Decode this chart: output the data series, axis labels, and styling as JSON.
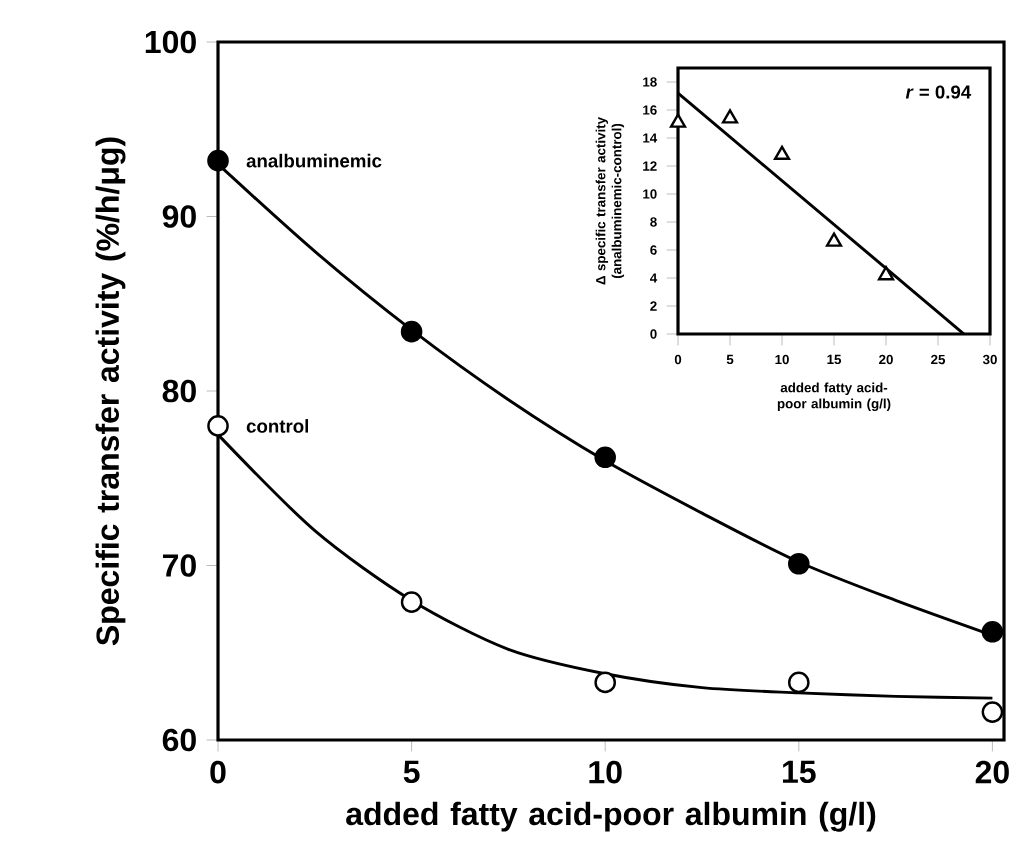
{
  "chart_data": [
    {
      "type": "scatter",
      "xlabel": "added fatty acid-poor albumin (g/l)",
      "ylabel": "Specific transfer activity (%/h/μg)",
      "xlim": [
        0,
        20.3
      ],
      "ylim": [
        60,
        100
      ],
      "xticks": [
        0,
        5,
        10,
        15,
        20
      ],
      "yticks": [
        60,
        70,
        80,
        90,
        100
      ],
      "marker": "circle",
      "grid": false,
      "legend": false,
      "series": [
        {
          "name": "analbuminemic",
          "color": "#000000",
          "x": [
            0,
            5,
            10,
            15,
            20
          ],
          "values": [
            93.2,
            83.4,
            76.2,
            70.1,
            66.2
          ]
        },
        {
          "name": "control",
          "color": "#ffffff",
          "x": [
            0,
            5,
            10,
            15,
            20
          ],
          "values": [
            78.0,
            67.9,
            63.3,
            63.3,
            61.6
          ]
        },
        {
          "type": "line",
          "marker": "none",
          "color": "#000000",
          "x": [
            0,
            2.5,
            5,
            7.5,
            10,
            12.5,
            15,
            17.5,
            20
          ],
          "values": [
            93,
            88,
            83.5,
            79.5,
            76,
            73,
            70.2,
            68,
            66
          ]
        },
        {
          "type": "line",
          "marker": "none",
          "color": "#000000",
          "x": [
            0,
            2.5,
            5,
            7.5,
            10,
            12.5,
            15,
            17.5,
            20
          ],
          "values": [
            77.5,
            72,
            68,
            65.2,
            63.8,
            63,
            62.7,
            62.5,
            62.4
          ]
        }
      ]
    },
    {
      "type": "scatter",
      "xlabel": "added fatty acid-poor albumin (g/l)",
      "ylabel": "Δ specific transfer activity (analbuminemic-control)",
      "xlim": [
        0,
        30
      ],
      "ylim": [
        0,
        19
      ],
      "xticks": [
        0,
        5,
        10,
        15,
        20,
        25,
        30
      ],
      "yticks": [
        0,
        2,
        4,
        6,
        8,
        10,
        12,
        14,
        16,
        18
      ],
      "marker": "triangle",
      "grid": false,
      "legend": false,
      "annotations": [
        "*r* = 0.94"
      ],
      "series": [
        {
          "color": "#ffffff",
          "x": [
            0,
            5,
            10,
            15,
            20
          ],
          "values": [
            15.1,
            15.4,
            12.8,
            6.6,
            4.2
          ]
        },
        {
          "type": "line",
          "marker": "none",
          "color": "#000000",
          "x": [
            0,
            27.5
          ],
          "values": [
            17.2,
            0
          ]
        }
      ]
    }
  ]
}
